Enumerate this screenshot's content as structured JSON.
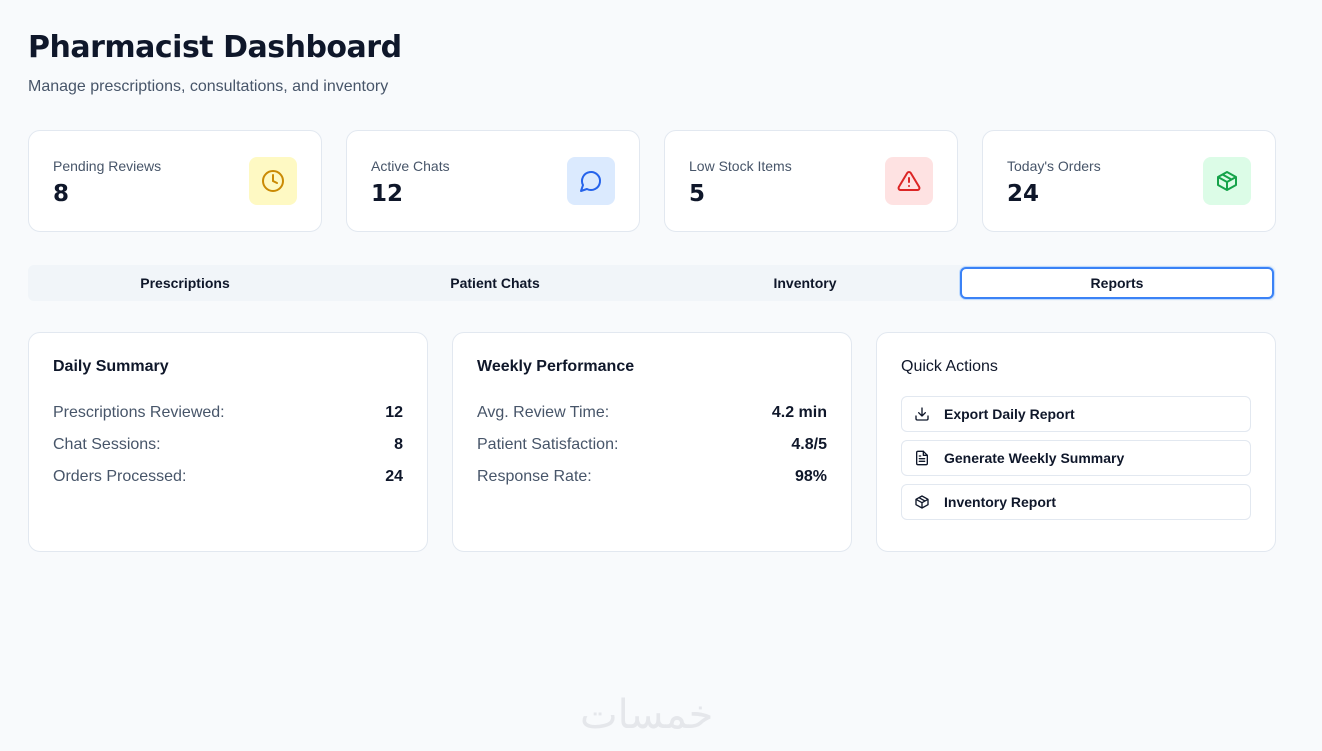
{
  "header": {
    "title": "Pharmacist Dashboard",
    "subtitle": "Manage prescriptions, consultations, and inventory"
  },
  "stats": [
    {
      "label": "Pending Reviews",
      "value": "8",
      "icon": "clock-icon",
      "color": "#ca8a04",
      "bg": "#fef9c3"
    },
    {
      "label": "Active Chats",
      "value": "12",
      "icon": "message-circle-icon",
      "color": "#2563eb",
      "bg": "#dbeafe"
    },
    {
      "label": "Low Stock Items",
      "value": "5",
      "icon": "alert-triangle-icon",
      "color": "#dc2626",
      "bg": "#fee2e2"
    },
    {
      "label": "Today's Orders",
      "value": "24",
      "icon": "package-icon",
      "color": "#16a34a",
      "bg": "#dcfce7"
    }
  ],
  "tabs": [
    {
      "label": "Prescriptions"
    },
    {
      "label": "Patient Chats"
    },
    {
      "label": "Inventory"
    },
    {
      "label": "Reports",
      "active": true
    }
  ],
  "daily": {
    "title": "Daily Summary",
    "rows": [
      {
        "k": "Prescriptions Reviewed:",
        "v": "12"
      },
      {
        "k": "Chat Sessions:",
        "v": "8"
      },
      {
        "k": "Orders Processed:",
        "v": "24"
      }
    ]
  },
  "weekly": {
    "title": "Weekly Performance",
    "rows": [
      {
        "k": "Avg. Review Time:",
        "v": "4.2 min"
      },
      {
        "k": "Patient Satisfaction:",
        "v": "4.8/5"
      },
      {
        "k": "Response Rate:",
        "v": "98%"
      }
    ]
  },
  "quick": {
    "title": "Quick Actions",
    "actions": [
      {
        "label": "Export Daily Report",
        "icon": "download-icon"
      },
      {
        "label": "Generate Weekly Summary",
        "icon": "file-text-icon"
      },
      {
        "label": "Inventory Report",
        "icon": "package-icon"
      }
    ]
  },
  "watermark": "خمسات"
}
